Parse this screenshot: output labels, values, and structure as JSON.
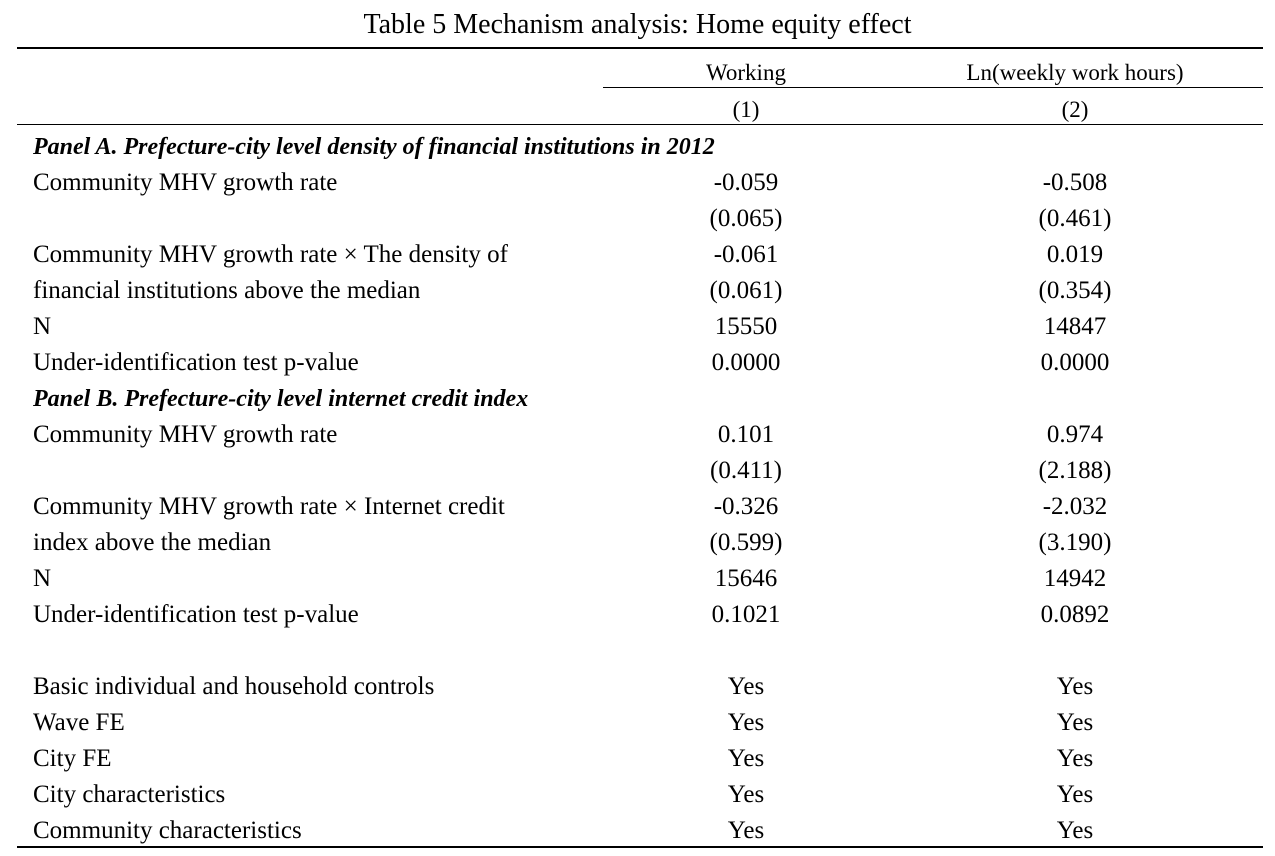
{
  "table": {
    "title": "Table 5 Mechanism analysis: Home equity effect",
    "columns": {
      "col1_label": "Working",
      "col2_label": "Ln(weekly work hours)",
      "col1_number": "(1)",
      "col2_number": "(2)"
    },
    "panel_a": {
      "title": "Panel A. Prefecture-city level density of financial institutions in 2012",
      "rows": [
        {
          "label": "Community MHV growth rate",
          "col1": "-0.059",
          "col2": "-0.508"
        },
        {
          "label": "",
          "col1": "(0.065)",
          "col2": "(0.461)"
        },
        {
          "label": "Community MHV growth rate × The density of",
          "col1": "-0.061",
          "col2": "0.019"
        },
        {
          "label": "financial institutions above the median",
          "col1": "(0.061)",
          "col2": "(0.354)"
        },
        {
          "label": "N",
          "col1": "15550",
          "col2": "14847"
        },
        {
          "label": "Under-identification test p-value",
          "col1": "0.0000",
          "col2": "0.0000"
        }
      ]
    },
    "panel_b": {
      "title": "Panel B. Prefecture-city level internet credit index",
      "rows": [
        {
          "label": "Community MHV growth rate",
          "col1": "0.101",
          "col2": "0.974"
        },
        {
          "label": "",
          "col1": "(0.411)",
          "col2": "(2.188)"
        },
        {
          "label": "Community MHV growth rate × Internet credit",
          "col1": "-0.326",
          "col2": "-2.032"
        },
        {
          "label": "index above the median",
          "col1": "(0.599)",
          "col2": "(3.190)"
        },
        {
          "label": "N",
          "col1": "15646",
          "col2": "14942"
        },
        {
          "label": "Under-identification test p-value",
          "col1": "0.1021",
          "col2": "0.0892"
        }
      ]
    },
    "controls": [
      {
        "label": "Basic individual and household controls",
        "col1": "Yes",
        "col2": "Yes"
      },
      {
        "label": "Wave FE",
        "col1": "Yes",
        "col2": "Yes"
      },
      {
        "label": "City FE",
        "col1": "Yes",
        "col2": "Yes"
      },
      {
        "label": "City characteristics",
        "col1": "Yes",
        "col2": "Yes"
      },
      {
        "label": "Community characteristics",
        "col1": "Yes",
        "col2": "Yes"
      }
    ]
  }
}
